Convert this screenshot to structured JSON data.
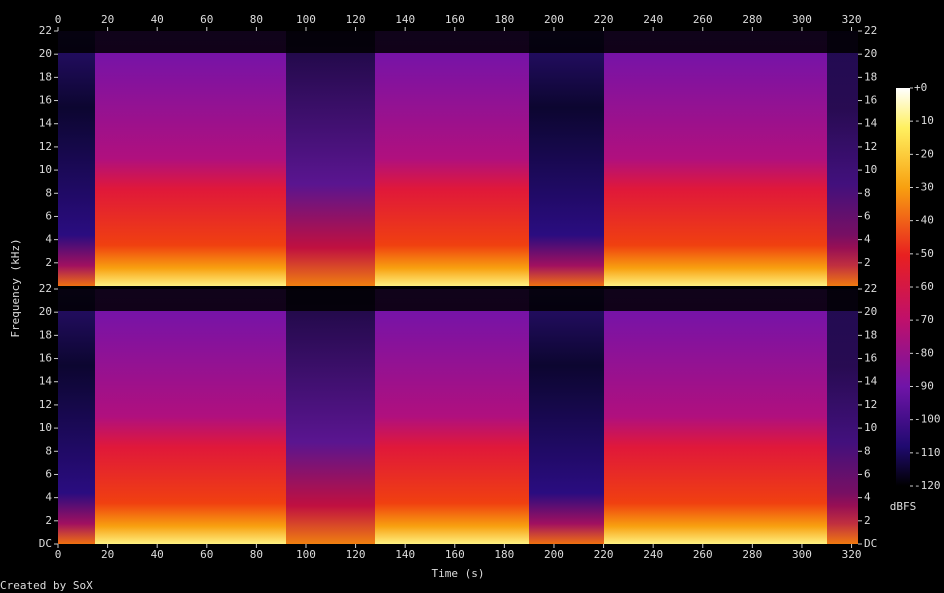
{
  "chart_data": {
    "type": "spectrogram",
    "xlabel": "Time (s)",
    "ylabel": "Frequency (kHz)",
    "xlim": [
      0,
      322.6
    ],
    "xticks": [
      0,
      20,
      40,
      60,
      80,
      100,
      120,
      140,
      160,
      180,
      200,
      220,
      240,
      260,
      280,
      300,
      320
    ],
    "panels": [
      {
        "ylim": [
          0,
          22
        ],
        "yticks": [
          2,
          4,
          6,
          8,
          10,
          12,
          14,
          16,
          18,
          20,
          22
        ]
      },
      {
        "ylim": [
          0,
          22
        ],
        "yticks": [
          {
            "value": 0,
            "label": "DC"
          },
          2,
          4,
          6,
          8,
          10,
          12,
          14,
          16,
          18,
          20,
          22
        ]
      }
    ],
    "colorbar": {
      "label": "dBFS",
      "lim": [
        -120,
        0
      ],
      "ticks": [
        {
          "value": 0,
          "label": "+0"
        },
        -10,
        -20,
        -30,
        -40,
        -50,
        -60,
        -70,
        -80,
        -90,
        -100,
        -110,
        -120
      ]
    }
  },
  "footer": "Created by SoX"
}
